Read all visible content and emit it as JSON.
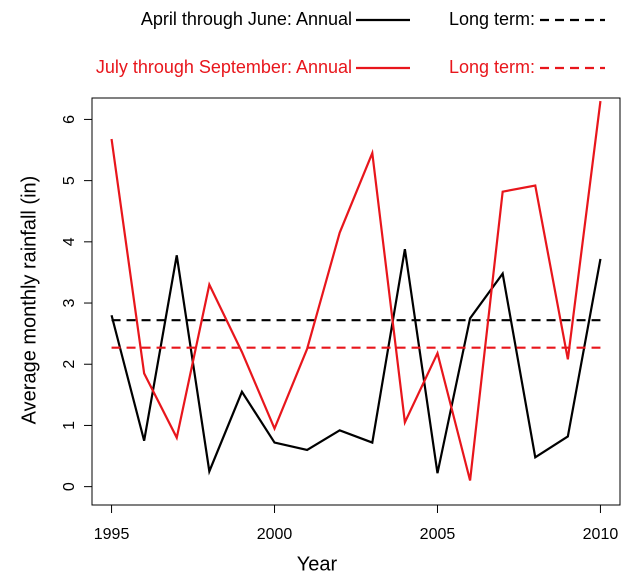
{
  "chart_data": {
    "type": "line",
    "x_label": "Year",
    "y_label": "Average monthly rainfall (in)",
    "x": [
      1995,
      1996,
      1997,
      1998,
      1999,
      2000,
      2001,
      2002,
      2003,
      2004,
      2005,
      2006,
      2007,
      2008,
      2009,
      2010
    ],
    "series": [
      {
        "name": "April through June: Annual",
        "color": "#000000",
        "dashed": false,
        "values": [
          2.8,
          0.75,
          3.78,
          0.25,
          1.55,
          0.72,
          0.6,
          0.92,
          0.72,
          3.88,
          0.22,
          2.75,
          3.48,
          0.48,
          0.82,
          3.72
        ]
      },
      {
        "name": "Long term:",
        "color": "#000000",
        "dashed": true,
        "value": 2.72
      },
      {
        "name": "July through September: Annual",
        "color": "#e8161c",
        "dashed": false,
        "values": [
          5.68,
          1.85,
          0.8,
          3.3,
          2.2,
          0.95,
          2.25,
          4.15,
          5.45,
          1.05,
          2.18,
          0.1,
          4.82,
          4.92,
          2.08,
          6.3
        ]
      },
      {
        "name": "Long term:",
        "color": "#e8161c",
        "dashed": true,
        "value": 2.27
      }
    ],
    "xlim": [
      1994.4,
      2010.6
    ],
    "ylim": [
      -0.3,
      6.35
    ],
    "xticks": [
      1995,
      2000,
      2005,
      2010
    ],
    "yticks": [
      0,
      1,
      2,
      3,
      4,
      5,
      6
    ],
    "grid": false
  }
}
